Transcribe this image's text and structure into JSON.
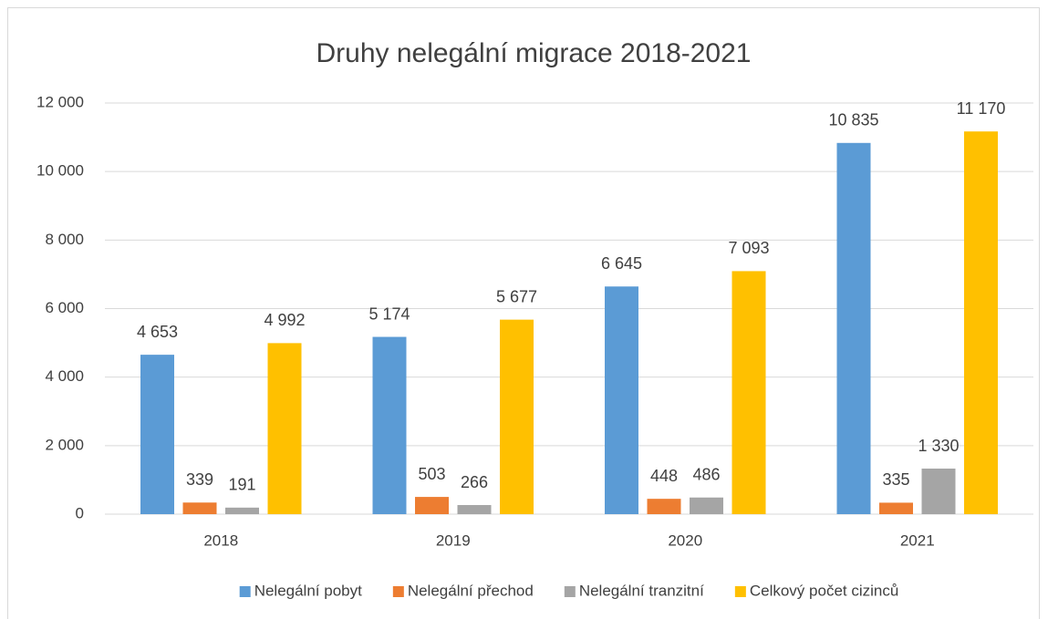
{
  "chart_data": {
    "type": "bar",
    "title": "Druhy nelegální migrace 2018-2021",
    "categories": [
      "2018",
      "2019",
      "2020",
      "2021"
    ],
    "series": [
      {
        "name": "Nelegální pobyt",
        "color": "#5b9bd5",
        "values": [
          4653,
          5174,
          6645,
          10835
        ],
        "value_labels": [
          "4 653",
          "5 174",
          "6 645",
          "10 835"
        ]
      },
      {
        "name": "Nelegální přechod",
        "color": "#ed7d31",
        "values": [
          339,
          503,
          448,
          335
        ]
      },
      {
        "name": "Nelegální tranzitní",
        "color": "#a5a5a5",
        "values": [
          191,
          266,
          486,
          1330
        ],
        "value_labels": [
          "191",
          "266",
          "486",
          "1 330"
        ]
      },
      {
        "name": "Celkový počet cizinců",
        "color": "#ffc000",
        "values": [
          4992,
          5677,
          7093,
          11170
        ],
        "value_labels": [
          "4 992",
          "5 677",
          "7 093",
          "11 170"
        ]
      }
    ],
    "ylim": [
      0,
      12000
    ],
    "yticks": [
      0,
      {
        "value": 2000,
        "label": "2 000"
      },
      {
        "value": 4000,
        "label": "4 000"
      },
      {
        "value": 6000,
        "label": "6 000"
      },
      {
        "value": 8000,
        "label": "8 000"
      },
      {
        "value": 10000,
        "label": "10 000"
      },
      {
        "value": 12000,
        "label": "12 000"
      }
    ],
    "grid": true,
    "legend": "bottom"
  }
}
